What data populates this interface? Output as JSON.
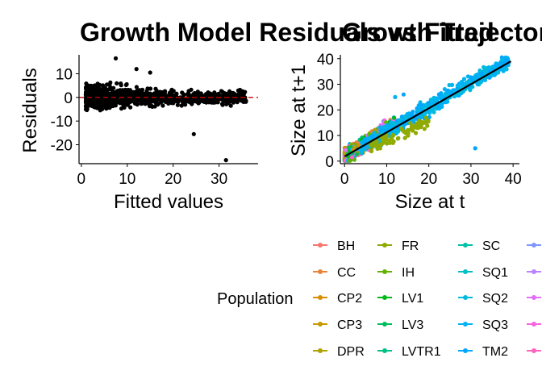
{
  "chart_data": [
    {
      "type": "scatter",
      "title": "Growth Model Residuals vs Fitted",
      "xlabel": "Fitted values",
      "ylabel": "Residuals",
      "xlim": [
        -0.5,
        38.5
      ],
      "ylim": [
        -28,
        18
      ],
      "xticks": [
        0,
        10,
        20,
        30
      ],
      "yticks": [
        -20,
        -10,
        0,
        10
      ],
      "grid": false,
      "reference_line": {
        "y": 0,
        "style": "dashed",
        "color": "#cc0000"
      },
      "point_color": "#000000",
      "notable_points": [
        {
          "x": 7.5,
          "y": 16.5
        },
        {
          "x": 24.5,
          "y": -15.5
        },
        {
          "x": 31.5,
          "y": -26.5
        },
        {
          "x": 12,
          "y": 12
        },
        {
          "x": 15,
          "y": 10.5
        }
      ]
    },
    {
      "type": "scatter",
      "title": "Growth Trajectories",
      "xlabel": "Size at t",
      "ylabel": "Size at t+1",
      "xlim": [
        -1,
        41.5
      ],
      "ylim": [
        -1,
        41.5
      ],
      "xticks": [
        0,
        10,
        20,
        30,
        40
      ],
      "yticks": [
        0,
        10,
        20,
        30,
        40
      ],
      "grid": false,
      "fit_line": {
        "x": [
          0,
          39.5
        ],
        "y": [
          1.8,
          39
        ],
        "color": "#000000"
      },
      "legend": {
        "title": "Population",
        "placement": "bottom",
        "columns": [
          [
            {
              "label": "BH",
              "color": "#F8766D"
            },
            {
              "label": "CC",
              "color": "#EC8239"
            },
            {
              "label": "CP2",
              "color": "#DB8E00"
            },
            {
              "label": "CP3",
              "color": "#C79800"
            },
            {
              "label": "DPR",
              "color": "#AEA200"
            }
          ],
          [
            {
              "label": "FR",
              "color": "#8FAA00"
            },
            {
              "label": "IH",
              "color": "#64B200"
            },
            {
              "label": "LV1",
              "color": "#00B81B"
            },
            {
              "label": "LV3",
              "color": "#00BD5C"
            },
            {
              "label": "LVTR1",
              "color": "#00C085"
            }
          ],
          [
            {
              "label": "SC",
              "color": "#00C1A7"
            },
            {
              "label": "SQ1",
              "color": "#00BFC4"
            },
            {
              "label": "SQ2",
              "color": "#00BADE"
            },
            {
              "label": "SQ3",
              "color": "#00B2F3"
            },
            {
              "label": "TM2",
              "color": "#00A6FF"
            }
          ],
          [
            {
              "label": "",
              "color": "#7F96FF"
            },
            {
              "label": "",
              "color": "#BC81FF"
            },
            {
              "label": "",
              "color": "#E26EF7"
            },
            {
              "label": "",
              "color": "#F863DF"
            },
            {
              "label": "",
              "color": "#FF62BF"
            }
          ]
        ]
      }
    }
  ]
}
